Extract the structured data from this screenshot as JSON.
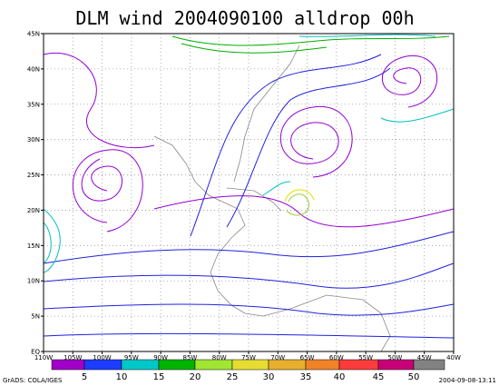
{
  "title": "DLM wind 2004090100 alldrop 00h",
  "lon_labels": [
    "110W",
    "105W",
    "100W",
    "95W",
    "90W",
    "85W",
    "80W",
    "75W",
    "70W",
    "65W",
    "60W",
    "55W",
    "50W",
    "45W",
    "40W"
  ],
  "lat_labels": [
    "EQ",
    "5N",
    "10N",
    "15N",
    "20N",
    "25N",
    "30N",
    "35N",
    "40N",
    "45N"
  ],
  "colorbar_labels": [
    "5",
    "10",
    "15",
    "20",
    "25",
    "30",
    "35",
    "40",
    "45",
    "50"
  ],
  "footer_left": "GrADS: COLA/IGES",
  "footer_right": "2004-09-08-13:11"
}
